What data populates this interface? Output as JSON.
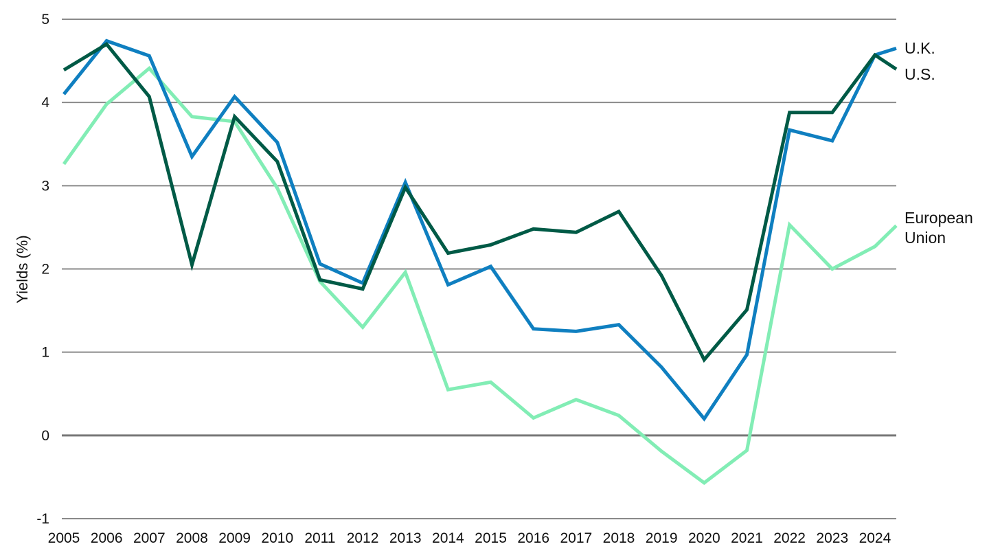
{
  "chart_data": {
    "type": "line",
    "title": "",
    "xlabel": "",
    "ylabel": "Yields (%)",
    "ylim": [
      -1,
      5
    ],
    "yticks": [
      -1,
      0,
      1,
      2,
      3,
      4,
      5
    ],
    "grid": "horizontal",
    "legend": "inline-right",
    "x": [
      "2005",
      "2006",
      "2007",
      "2008",
      "2009",
      "2010",
      "2011",
      "2012",
      "2013",
      "2014",
      "2015",
      "2016",
      "2017",
      "2018",
      "2019",
      "2020",
      "2021",
      "2022",
      "2023",
      "2024",
      "2024.5"
    ],
    "x_tick_labels": [
      "2005",
      "2006",
      "2007",
      "2008",
      "2009",
      "2010",
      "2011",
      "2012",
      "2013",
      "2014",
      "2015",
      "2016",
      "2017",
      "2018",
      "2019",
      "2020",
      "2021",
      "2022",
      "2023",
      "2024"
    ],
    "series": [
      {
        "name": "U.S.",
        "color": "#005a46",
        "values": [
          4.39,
          4.7,
          4.07,
          2.05,
          3.83,
          3.29,
          1.87,
          1.76,
          2.98,
          2.19,
          2.29,
          2.48,
          2.44,
          2.69,
          1.92,
          0.91,
          1.51,
          3.88,
          3.88,
          4.57,
          4.4
        ]
      },
      {
        "name": "U.K.",
        "color": "#0f7fc0",
        "values": [
          4.1,
          4.74,
          4.56,
          3.35,
          4.07,
          3.52,
          2.06,
          1.83,
          3.04,
          1.81,
          2.03,
          1.28,
          1.25,
          1.33,
          0.82,
          0.2,
          0.97,
          3.67,
          3.54,
          4.57,
          4.65
        ]
      },
      {
        "name": "European Union",
        "name_lines": [
          "European",
          "Union"
        ],
        "color": "#82edb5",
        "values": [
          3.26,
          3.98,
          4.41,
          3.83,
          3.77,
          2.97,
          1.85,
          1.3,
          1.96,
          0.55,
          0.64,
          0.21,
          0.43,
          0.24,
          -0.19,
          -0.57,
          -0.18,
          2.53,
          2.0,
          2.27,
          2.52
        ]
      }
    ]
  }
}
